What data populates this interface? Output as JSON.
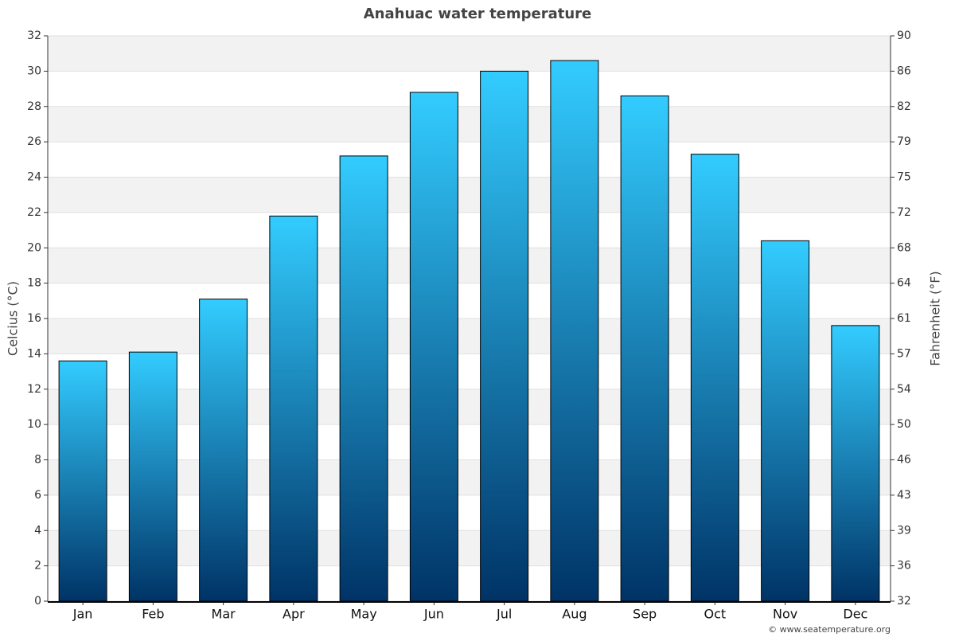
{
  "chart_data": {
    "type": "bar",
    "title": "Anahuac water temperature",
    "categories": [
      "Jan",
      "Feb",
      "Mar",
      "Apr",
      "May",
      "Jun",
      "Jul",
      "Aug",
      "Sep",
      "Oct",
      "Nov",
      "Dec"
    ],
    "values": [
      13.6,
      14.1,
      17.1,
      21.8,
      25.2,
      28.8,
      30.0,
      30.6,
      28.6,
      25.3,
      20.4,
      15.6
    ],
    "gradient": [
      "#33ccff",
      "#003366"
    ],
    "ylabel": "Celcius (°C)",
    "y2label": "Fahrenheit (°F)",
    "ylim": [
      0,
      32
    ],
    "yticks": [
      0,
      2,
      4,
      6,
      8,
      10,
      12,
      14,
      16,
      18,
      20,
      22,
      24,
      26,
      28,
      30,
      32
    ],
    "y2lim": [
      32,
      89.6
    ],
    "y2ticks": [
      32,
      {
        "value": 35.6,
        "label": "36"
      },
      {
        "value": 39.2,
        "label": "39"
      },
      {
        "value": 42.8,
        "label": "43"
      },
      {
        "value": 46.4,
        "label": "46"
      },
      50,
      {
        "value": 53.6,
        "label": "54"
      },
      {
        "value": 57.2,
        "label": "57"
      },
      {
        "value": 60.8,
        "label": "61"
      },
      {
        "value": 64.4,
        "label": "64"
      },
      68,
      {
        "value": 71.6,
        "label": "72"
      },
      {
        "value": 75.2,
        "label": "75"
      },
      {
        "value": 78.8,
        "label": "79"
      },
      {
        "value": 82.4,
        "label": "82"
      },
      86,
      {
        "value": 89.6,
        "label": "90"
      }
    ],
    "grid": true,
    "footer": "© www.seatemperature.org"
  }
}
